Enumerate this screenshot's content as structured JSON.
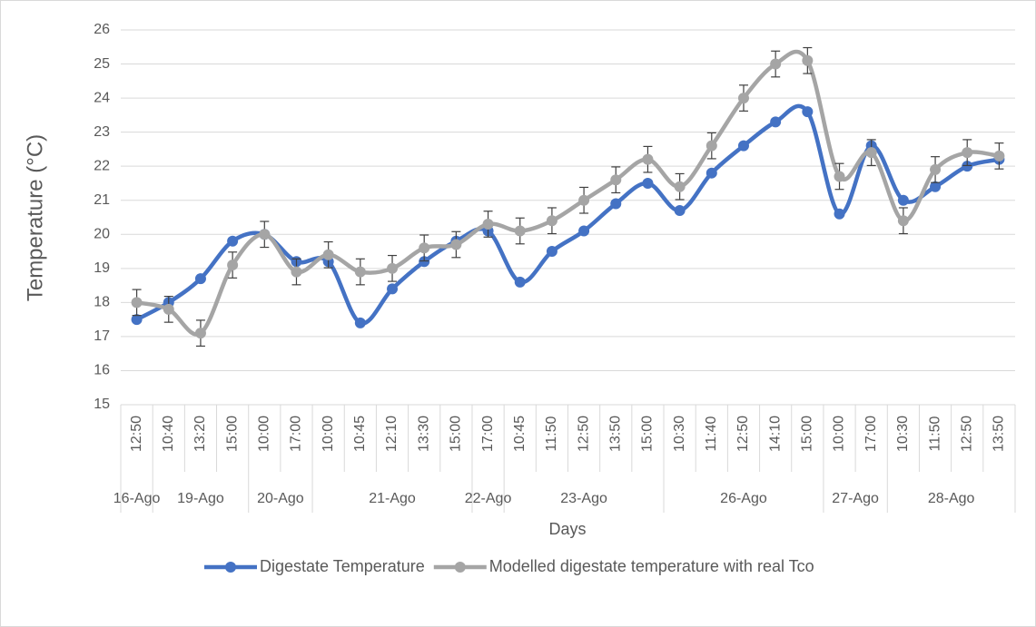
{
  "chart_data": {
    "type": "line",
    "x_label": "Days",
    "y_label": "Temperature (°C)",
    "groups": [
      {
        "name": "16-Ago",
        "categories": [
          "12:50"
        ]
      },
      {
        "name": "19-Ago",
        "categories": [
          "10:40",
          "13:20",
          "15:00"
        ]
      },
      {
        "name": "20-Ago",
        "categories": [
          "10:00",
          "17:00"
        ]
      },
      {
        "name": "21-Ago",
        "categories": [
          "10:00",
          "10:45",
          "12:10",
          "13:30",
          "15:00"
        ]
      },
      {
        "name": "22-Ago",
        "categories": [
          "17:00"
        ]
      },
      {
        "name": "23-Ago",
        "categories": [
          "10:45",
          "11:50",
          "12:50",
          "13:50",
          "15:00"
        ]
      },
      {
        "name": "26-Ago",
        "categories": [
          "10:30",
          "11:40",
          "12:50",
          "14:10",
          "15:00"
        ]
      },
      {
        "name": "27-Ago",
        "categories": [
          "10:00",
          "17:00"
        ]
      },
      {
        "name": "28-Ago",
        "categories": [
          "10:30",
          "11:50",
          "12:50",
          "13:50"
        ]
      }
    ],
    "series": [
      {
        "name": "Digestate Temperature",
        "color": "#4472c4",
        "values": [
          17.5,
          18.0,
          18.7,
          19.8,
          20.0,
          19.2,
          19.2,
          17.4,
          18.4,
          19.2,
          19.8,
          20.1,
          18.6,
          19.5,
          20.1,
          20.9,
          21.5,
          20.7,
          21.8,
          22.6,
          23.3,
          23.6,
          20.6,
          22.6,
          21.0,
          21.4,
          22.0,
          22.2
        ]
      },
      {
        "name": "Modelled digestate temperature with real Tco",
        "color": "#a5a5a5",
        "values": [
          18.0,
          17.8,
          17.1,
          19.1,
          20.0,
          18.9,
          19.4,
          18.9,
          19.0,
          19.6,
          19.7,
          20.3,
          20.1,
          20.4,
          21.0,
          21.6,
          22.2,
          21.4,
          22.6,
          24.0,
          25.0,
          25.1,
          21.7,
          22.4,
          20.4,
          21.9,
          22.4,
          22.3
        ],
        "errors": [
          0.38,
          0.38,
          0.38,
          0.38,
          0.38,
          0.38,
          0.38,
          0.38,
          0.38,
          0.38,
          0.38,
          0.38,
          0.38,
          0.38,
          0.38,
          0.38,
          0.38,
          0.38,
          0.38,
          0.38,
          0.38,
          0.38,
          0.38,
          0.38,
          0.38,
          0.38,
          0.38,
          0.38
        ]
      }
    ],
    "ylim": [
      15,
      26
    ],
    "yticks": [
      15,
      16,
      17,
      18,
      19,
      20,
      21,
      22,
      23,
      24,
      25,
      26
    ],
    "grid": true,
    "smooth": true,
    "legend": "bottom"
  }
}
